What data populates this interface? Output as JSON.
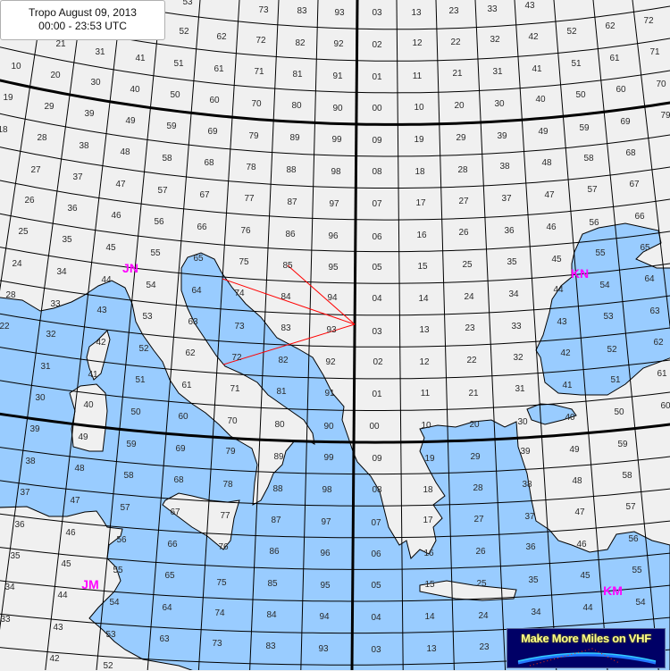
{
  "header": {
    "title": "Tropo August 09, 2013",
    "subtitle": "00:00 - 23:53 UTC"
  },
  "locator_fields": [
    "JN",
    "KN",
    "JM",
    "KM"
  ],
  "logo": {
    "text": "Make More Miles on VHF"
  },
  "colors": {
    "sea": "#99ccff",
    "land": "#f0f0f0",
    "grid": "#000000",
    "path": "#ff0000",
    "field_label": "#ff00ff",
    "logo_bg": "#000066"
  },
  "grid_labels": [
    "53",
    "52",
    "62",
    "41",
    "51",
    "61",
    "10",
    "20",
    "21",
    "31",
    "30",
    "40",
    "50",
    "60",
    "19",
    "29",
    "39",
    "49",
    "59",
    "69",
    "18",
    "28",
    "38",
    "48",
    "58",
    "68",
    "27",
    "37",
    "47",
    "57",
    "67",
    "26",
    "36",
    "46",
    "56",
    "66",
    "73",
    "83",
    "93",
    "03",
    "13",
    "72",
    "82",
    "92",
    "02",
    "12",
    "71",
    "81",
    "91",
    "01",
    "11",
    "70",
    "80",
    "90",
    "00",
    "10",
    "79",
    "89",
    "99",
    "09",
    "19",
    "78",
    "88",
    "98",
    "08",
    "18",
    "77",
    "87",
    "97",
    "07",
    "17",
    "23",
    "33",
    "43",
    "22",
    "32",
    "42",
    "52",
    "62",
    "72",
    "21",
    "31",
    "41",
    "51",
    "61",
    "71",
    "20",
    "30",
    "40",
    "50",
    "60",
    "70",
    "29",
    "39",
    "49",
    "59",
    "69",
    "79",
    "28",
    "38",
    "48",
    "58",
    "68",
    "27",
    "37",
    "47",
    "57",
    "67",
    "66",
    "25",
    "35",
    "45",
    "55",
    "65",
    "24",
    "34",
    "44",
    "54",
    "64",
    "28",
    "33",
    "43",
    "53",
    "63",
    "22",
    "32",
    "42",
    "52",
    "62",
    "31",
    "41",
    "51",
    "61",
    "30",
    "40",
    "50",
    "60",
    "39",
    "49",
    "59",
    "76",
    "86",
    "96",
    "06",
    "16",
    "75",
    "85",
    "95",
    "05",
    "15",
    "74",
    "84",
    "94",
    "04",
    "14",
    "73",
    "83",
    "93",
    "03",
    "13",
    "72",
    "82",
    "92",
    "02",
    "12",
    "71",
    "81",
    "91",
    "01",
    "11",
    "70",
    "80",
    "90",
    "00",
    "10",
    "26",
    "36",
    "46",
    "56",
    "25",
    "35",
    "45",
    "55",
    "65",
    "24",
    "34",
    "44",
    "54",
    "64",
    "23",
    "33",
    "43",
    "53",
    "63",
    "22",
    "32",
    "42",
    "52",
    "62",
    "21",
    "31",
    "41",
    "51",
    "61",
    "20",
    "30",
    "40",
    "50",
    "60",
    "38",
    "48",
    "58",
    "68",
    "69",
    "37",
    "47",
    "57",
    "67",
    "36",
    "46",
    "56",
    "66",
    "35",
    "45",
    "55",
    "65",
    "34",
    "44",
    "54",
    "64",
    "33",
    "43",
    "53",
    "63",
    "42",
    "52",
    "79",
    "78",
    "77",
    "76",
    "75",
    "74",
    "73",
    "89",
    "99",
    "09",
    "19",
    "88",
    "98",
    "08",
    "18",
    "87",
    "97",
    "07",
    "17",
    "86",
    "96",
    "06",
    "16",
    "85",
    "95",
    "05",
    "15",
    "84",
    "94",
    "04",
    "14",
    "83",
    "93",
    "03",
    "13",
    "29",
    "39",
    "49",
    "59",
    "28",
    "38",
    "48",
    "58",
    "27",
    "37",
    "47",
    "57",
    "26",
    "36",
    "46",
    "56",
    "25",
    "35",
    "45",
    "55",
    "24",
    "34",
    "44",
    "54",
    "23"
  ]
}
